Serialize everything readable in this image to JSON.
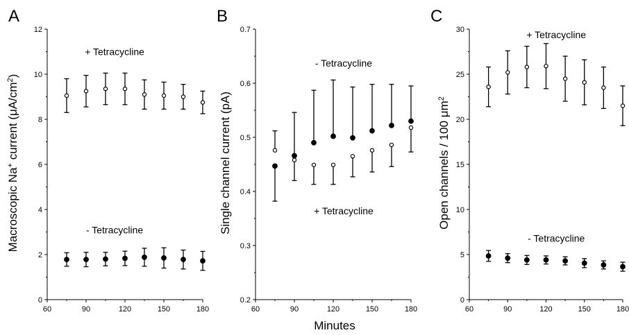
{
  "x_axis_label": "Minutes",
  "chart_data": [
    {
      "panel": "A",
      "type": "scatter",
      "ylabel": {
        "pre": "Macroscopic Na",
        "sup1": "+",
        "mid": " current (μA/cm",
        "sup2": "2",
        "post": ")"
      },
      "xlim": [
        60,
        180
      ],
      "ylim": [
        0,
        12
      ],
      "xticks": [
        60,
        90,
        120,
        150,
        180
      ],
      "yticks": [
        0,
        2,
        4,
        6,
        8,
        10,
        12
      ],
      "series": [
        {
          "name": "+ Tetracycline",
          "marker": "open",
          "x": [
            75,
            90,
            105,
            120,
            135,
            150,
            165,
            180
          ],
          "y": [
            9.05,
            9.25,
            9.35,
            9.35,
            9.1,
            9.05,
            9.0,
            8.75
          ],
          "err": [
            0.75,
            0.7,
            0.7,
            0.7,
            0.65,
            0.6,
            0.55,
            0.5
          ]
        },
        {
          "name": "- Tetracycline",
          "marker": "filled",
          "x": [
            75,
            90,
            105,
            120,
            135,
            150,
            165,
            180
          ],
          "y": [
            1.78,
            1.78,
            1.8,
            1.83,
            1.88,
            1.85,
            1.78,
            1.72
          ],
          "err": [
            0.3,
            0.32,
            0.3,
            0.32,
            0.4,
            0.45,
            0.42,
            0.42
          ]
        }
      ],
      "annotations": [
        {
          "text": "+ Tetracycline",
          "x": 112,
          "y": 11.0
        },
        {
          "text": "- Tetracycline",
          "x": 112,
          "y": 3.1
        }
      ]
    },
    {
      "panel": "B",
      "type": "scatter",
      "ylabel": "Single channel current (pA)",
      "xlim": [
        60,
        180
      ],
      "ylim": [
        0.2,
        0.7
      ],
      "xticks": [
        60,
        90,
        120,
        150,
        180
      ],
      "yticks": [
        0.2,
        0.3,
        0.4,
        0.5,
        0.6,
        0.7
      ],
      "series": [
        {
          "name": "- Tetracycline",
          "marker": "filled",
          "x": [
            75,
            90,
            105,
            120,
            135,
            150,
            165,
            180
          ],
          "y": [
            0.447,
            0.466,
            0.49,
            0.502,
            0.499,
            0.512,
            0.522,
            0.53
          ],
          "err_up": [
            0.0,
            0.08,
            0.097,
            0.104,
            0.094,
            0.086,
            0.076,
            0.065
          ],
          "err_down": [
            0.065,
            0.0,
            0.0,
            0.0,
            0.0,
            0.0,
            0.0,
            0.0
          ]
        },
        {
          "name": "+ Tetracycline",
          "marker": "open",
          "x": [
            75,
            90,
            105,
            120,
            135,
            150,
            165,
            180
          ],
          "y": [
            0.476,
            0.458,
            0.449,
            0.449,
            0.465,
            0.476,
            0.486,
            0.518
          ],
          "err_up": [
            0.036,
            0.0,
            0.0,
            0.0,
            0.0,
            0.0,
            0.0,
            0.0
          ],
          "err_down": [
            0.0,
            0.038,
            0.036,
            0.036,
            0.038,
            0.04,
            0.04,
            0.045
          ]
        }
      ],
      "annotations": [
        {
          "text": "- Tetracycline",
          "x": 128,
          "y": 0.637
        },
        {
          "text": "+ Tetracycline",
          "x": 128,
          "y": 0.364
        }
      ]
    },
    {
      "panel": "C",
      "type": "scatter",
      "ylabel": {
        "pre": "Open channels / 100 μm",
        "sup": "2"
      },
      "xlim": [
        60,
        180
      ],
      "ylim": [
        0,
        30
      ],
      "xticks": [
        60,
        90,
        120,
        150,
        180
      ],
      "yticks": [
        0,
        5,
        10,
        15,
        20,
        25,
        30
      ],
      "series": [
        {
          "name": "+ Tetracycline",
          "marker": "open",
          "x": [
            75,
            90,
            105,
            120,
            135,
            150,
            165,
            180
          ],
          "y": [
            23.6,
            25.2,
            25.8,
            25.9,
            24.5,
            24.1,
            23.5,
            21.5
          ],
          "err": [
            2.2,
            2.4,
            2.3,
            2.5,
            2.5,
            2.5,
            2.3,
            2.2
          ]
        },
        {
          "name": "- Tetracycline",
          "marker": "filled",
          "x": [
            75,
            90,
            105,
            120,
            135,
            150,
            165,
            180
          ],
          "y": [
            4.85,
            4.6,
            4.4,
            4.4,
            4.3,
            4.05,
            3.85,
            3.65
          ],
          "err": [
            0.6,
            0.5,
            0.5,
            0.45,
            0.45,
            0.5,
            0.45,
            0.5
          ]
        }
      ],
      "annotations": [
        {
          "text": "+ Tetracycline",
          "x": 128,
          "y": 29.4
        },
        {
          "text": "- Tetracycline",
          "x": 128,
          "y": 6.8
        }
      ]
    }
  ]
}
